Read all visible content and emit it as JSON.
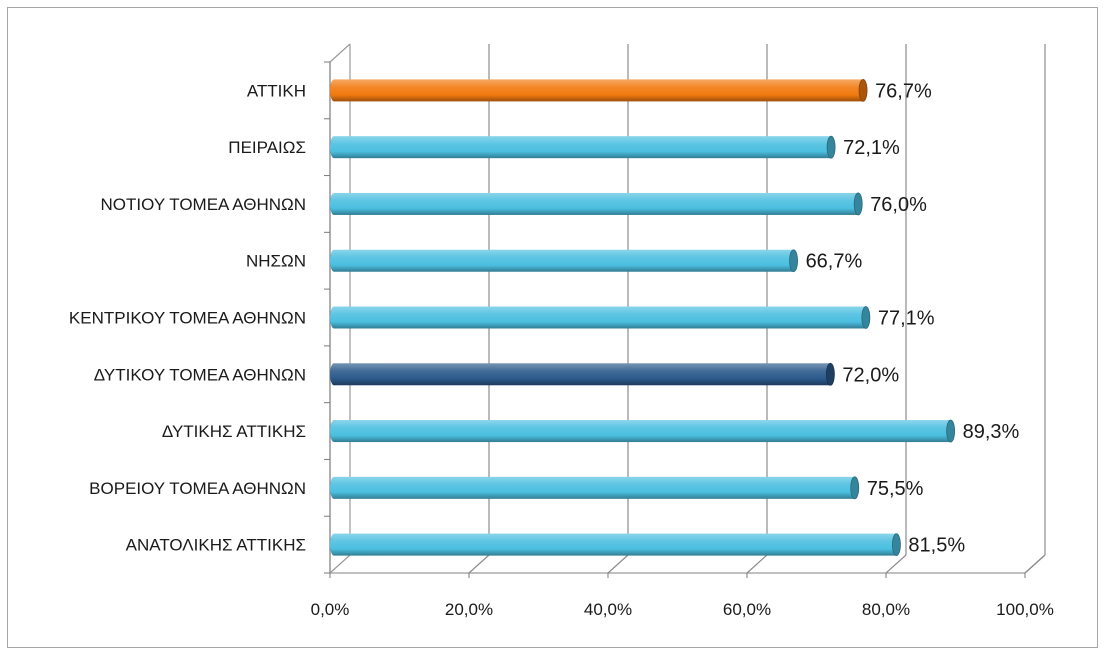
{
  "chart_data": {
    "type": "bar",
    "orientation": "horizontal",
    "style": "3d-cylinder",
    "categories": [
      "ΑΝΑΤΟΛΙΚΗΣ ΑΤΤΙΚΗΣ",
      "ΒΟΡΕΙΟΥ ΤΟΜΕΑ ΑΘΗΝΩΝ",
      "ΔΥΤΙΚΗΣ ΑΤΤΙΚΗΣ",
      "ΔΥΤΙΚΟΥ ΤΟΜΕΑ ΑΘΗΝΩΝ",
      "ΚΕΝΤΡΙΚΟΥ ΤΟΜΕΑ ΑΘΗΝΩΝ",
      "ΝΗΣΩΝ",
      "ΝΟΤΙΟΥ ΤΟΜΕΑ ΑΘΗΝΩΝ",
      "ΠΕΙΡΑΙΩΣ",
      "ΑΤΤΙΚΗ"
    ],
    "values": [
      81.5,
      75.5,
      89.3,
      72.0,
      77.1,
      66.7,
      76.0,
      72.1,
      76.7
    ],
    "value_labels": [
      "81,5%",
      "75,5%",
      "89,3%",
      "72,0%",
      "77,1%",
      "66,7%",
      "76,0%",
      "72,1%",
      "76,7%"
    ],
    "bar_colors": [
      "#4bbfe0",
      "#4bbfe0",
      "#4bbfe0",
      "#2c5a8c",
      "#4bbfe0",
      "#4bbfe0",
      "#4bbfe0",
      "#4bbfe0",
      "#f27a10"
    ],
    "xlim": [
      0,
      100
    ],
    "xticks": [
      0,
      20,
      40,
      60,
      80,
      100
    ],
    "xtick_labels": [
      "0,0%",
      "20,0%",
      "40,0%",
      "60,0%",
      "80,0%",
      "100,0%"
    ],
    "grid": "vertical",
    "legend": "none",
    "title": "",
    "xlabel": "",
    "ylabel": ""
  }
}
